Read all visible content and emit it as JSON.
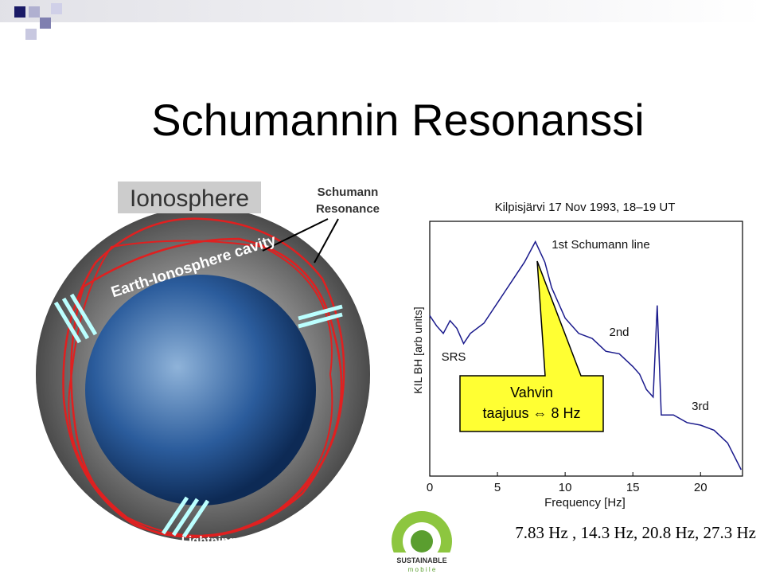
{
  "slide": {
    "title": "Schumannin Resonanssi",
    "diagram": {
      "ionosphere": "Ionosphere",
      "resonance": [
        "Schumann",
        "Resonance"
      ],
      "cavity": "Earth-Ionosphere cavity",
      "lightning": "Lightning"
    },
    "spectrum": {
      "type": "line",
      "title": "Kilpisjärvi 17 Nov 1993, 18–19 UT",
      "x_label": "Frequency [Hz]",
      "y_label": "KIL BH [arb units]",
      "annotations": [
        "1st Schumann line",
        "2nd",
        "3rd",
        "SRS"
      ],
      "x": [
        0,
        0.5,
        1,
        1.5,
        2,
        2.5,
        3,
        4,
        5,
        6,
        7,
        7.8,
        8.5,
        9,
        10,
        11,
        12,
        13,
        14,
        15,
        15.5,
        16,
        16.5,
        16.8,
        17.1,
        18,
        19,
        20,
        21,
        22,
        23
      ],
      "values": [
        6.3,
        5.9,
        5.6,
        6.1,
        5.8,
        5.2,
        5.6,
        6.0,
        6.8,
        7.6,
        8.4,
        9.2,
        8.4,
        7.4,
        6.2,
        5.6,
        5.4,
        4.9,
        4.8,
        4.3,
        4.0,
        3.4,
        3.1,
        6.7,
        2.4,
        2.4,
        2.1,
        2.0,
        1.8,
        1.3,
        0.25
      ],
      "color": "#1a1a8c",
      "xlim": [
        0,
        23.1
      ],
      "xticks": [
        0,
        5,
        10,
        15,
        20
      ],
      "ylim": [
        0,
        10
      ]
    },
    "callout": [
      "Vahvin",
      "taajuus ⇔ 8 Hz"
    ],
    "frequencies": "7.83 Hz , 14.3 Hz, 20.8 Hz, 27.3 Hz",
    "logo": [
      "SUSTAINABLE",
      "m o b i l e"
    ]
  }
}
